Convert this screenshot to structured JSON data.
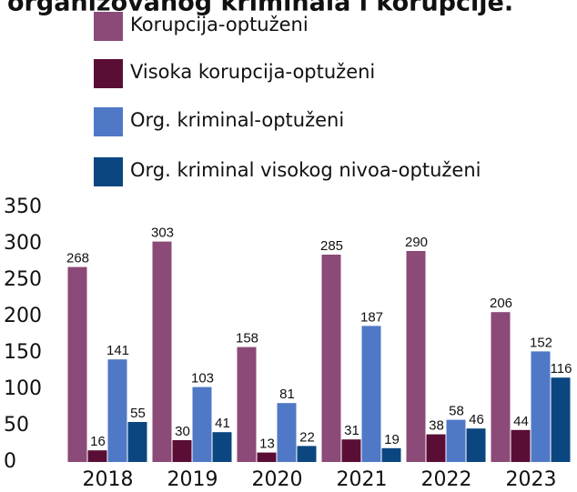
{
  "chart_data": {
    "type": "bar",
    "title": "organizovanog kriminala i korupcije.",
    "categories": [
      "2018",
      "2019",
      "2020",
      "2021",
      "2022",
      "2023"
    ],
    "series": [
      {
        "name": "Korupcija-optuženi",
        "color": "#8b4a78",
        "values": [
          268,
          303,
          158,
          285,
          290,
          206
        ]
      },
      {
        "name": "Visoka korupcija-optuženi",
        "color": "#5a0e35",
        "values": [
          16,
          30,
          13,
          31,
          38,
          44
        ]
      },
      {
        "name": "Org. kriminal-optuženi",
        "color": "#4f78c6",
        "values": [
          141,
          103,
          81,
          187,
          58,
          152
        ]
      },
      {
        "name": "Org. kriminal visokog nivoa-optuženi",
        "color": "#0b4680",
        "values": [
          55,
          41,
          22,
          19,
          46,
          116
        ]
      }
    ],
    "ylim": [
      0,
      350
    ],
    "yticks": [
      0,
      50,
      100,
      150,
      200,
      250,
      300,
      350
    ],
    "grid": false,
    "legend": "top"
  }
}
